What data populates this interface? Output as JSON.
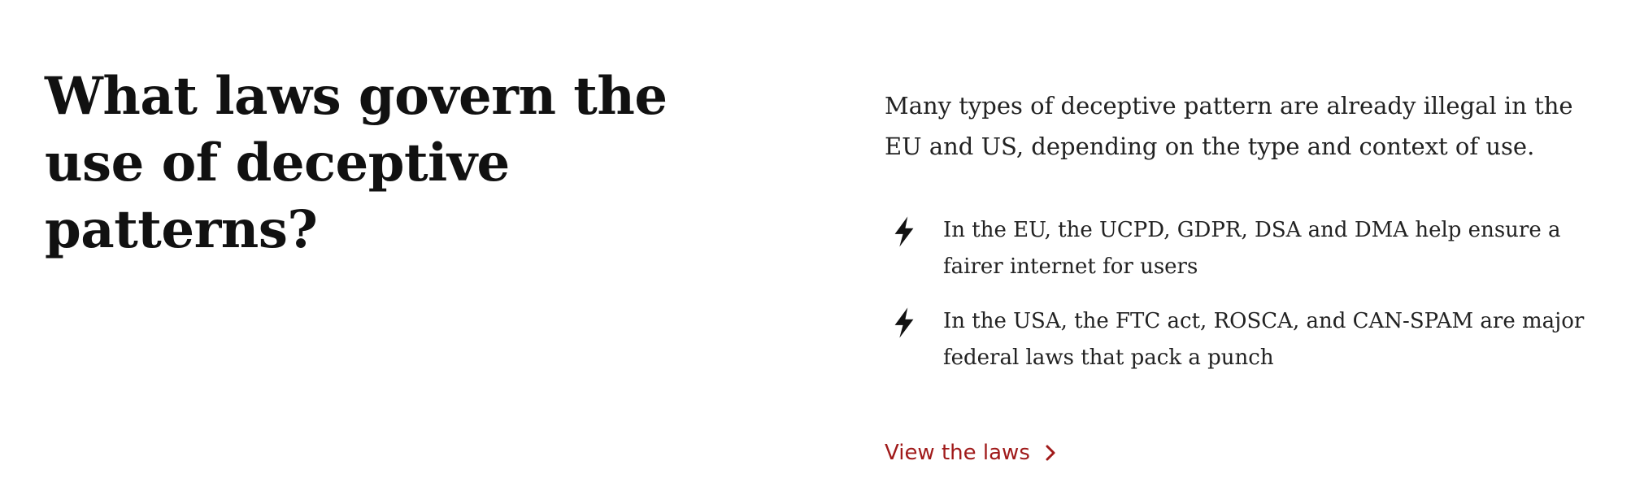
{
  "section": {
    "heading": "What laws govern the use of deceptive patterns?",
    "intro": "Many types of deceptive pattern are already illegal in the EU and US, depending on the type and context of use.",
    "bullets": [
      {
        "icon": "lightning-bolt-icon",
        "text": "In the EU, the UCPD, GDPR, DSA and DMA help ensure a fairer internet for users"
      },
      {
        "icon": "lightning-bolt-icon",
        "text": "In the USA, the FTC act, ROSCA, and CAN-SPAM are major federal laws that pack a punch"
      }
    ],
    "link": {
      "label": "View the laws",
      "icon": "chevron-right-icon"
    }
  },
  "colors": {
    "text": "#111111",
    "link": "#a01a1a",
    "background": "#ffffff"
  }
}
